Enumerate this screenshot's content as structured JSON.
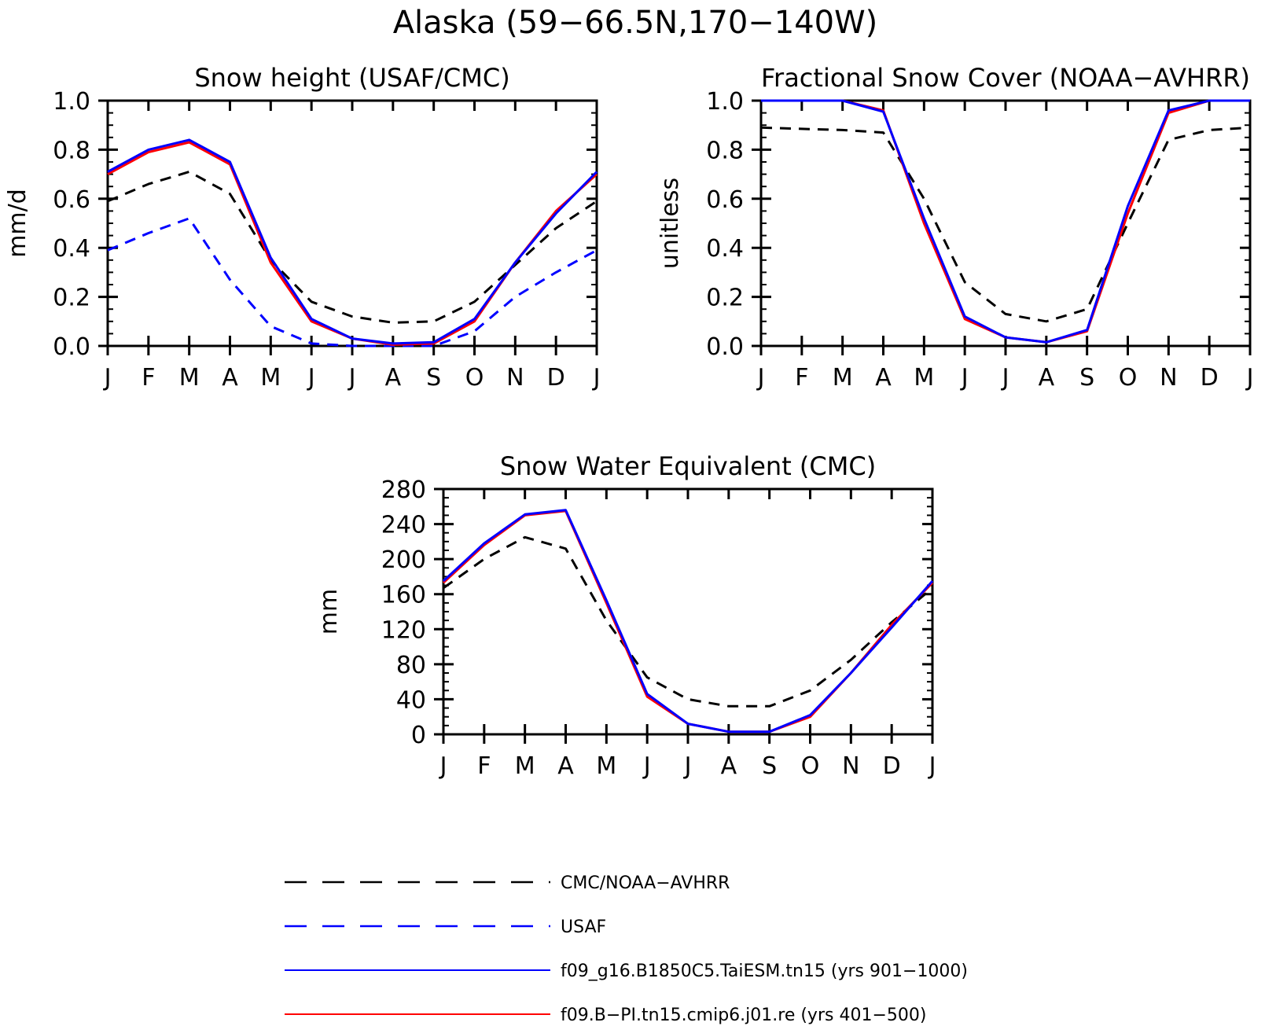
{
  "page_title": "Alaska (59−66.5N,170−140W)",
  "months": [
    "J",
    "F",
    "M",
    "A",
    "M",
    "J",
    "J",
    "A",
    "S",
    "O",
    "N",
    "D",
    "J"
  ],
  "colors": {
    "obs": "#000000",
    "usaf": "#0000ff",
    "taiesm": "#0000ff",
    "cmip6": "#ff0000"
  },
  "legend": [
    {
      "label": "CMC/NOAA−AVHRR",
      "color": "#000000",
      "dashed": true
    },
    {
      "label": "USAF",
      "color": "#0000ff",
      "dashed": true
    },
    {
      "label": "f09_g16.B1850C5.TaiESM.tn15 (yrs 901−1000)",
      "color": "#0000ff",
      "dashed": false
    },
    {
      "label": "f09.B−PI.tn15.cmip6.j01.re (yrs 401−500)",
      "color": "#ff0000",
      "dashed": false
    }
  ],
  "chart_data": [
    {
      "type": "line",
      "title": "Snow height (USAF/CMC)",
      "ylabel": "mm/d",
      "ylim": [
        0,
        1
      ],
      "yticks": [
        "0.0",
        "0.2",
        "0.4",
        "0.6",
        "0.8",
        "1.0"
      ],
      "ytick_values": [
        0,
        0.2,
        0.4,
        0.6,
        0.8,
        1.0
      ],
      "yminor": 0.05,
      "series": [
        {
          "name": "CMC/NOAA−AVHRR",
          "key": "obs",
          "dashed": true,
          "values": [
            0.59,
            0.66,
            0.71,
            0.62,
            0.35,
            0.18,
            0.12,
            0.095,
            0.1,
            0.18,
            0.33,
            0.48,
            0.59
          ]
        },
        {
          "name": "USAF",
          "key": "usaf",
          "dashed": true,
          "values": [
            0.39,
            0.46,
            0.52,
            0.27,
            0.08,
            0.01,
            0.0,
            0.0,
            0.0,
            0.06,
            0.2,
            0.3,
            0.39
          ]
        },
        {
          "name": "f09.B−PI.tn15.cmip6.j01.re (yrs 401−500)",
          "key": "cmip6",
          "dashed": false,
          "values": [
            0.7,
            0.79,
            0.83,
            0.74,
            0.34,
            0.1,
            0.03,
            0.005,
            0.01,
            0.1,
            0.34,
            0.55,
            0.7
          ]
        },
        {
          "name": "f09_g16.B1850C5.TaiESM.tn15 (yrs 901−1000)",
          "key": "taiesm",
          "dashed": false,
          "values": [
            0.71,
            0.8,
            0.84,
            0.75,
            0.36,
            0.11,
            0.03,
            0.01,
            0.015,
            0.11,
            0.34,
            0.54,
            0.71
          ]
        }
      ]
    },
    {
      "type": "line",
      "title": "Fractional Snow Cover (NOAA−AVHRR)",
      "ylabel": "unitless",
      "ylim": [
        0,
        1
      ],
      "yticks": [
        "0.0",
        "0.2",
        "0.4",
        "0.6",
        "0.8",
        "1.0"
      ],
      "ytick_values": [
        0,
        0.2,
        0.4,
        0.6,
        0.8,
        1.0
      ],
      "yminor": 0.05,
      "series": [
        {
          "name": "CMC/NOAA−AVHRR",
          "key": "obs",
          "dashed": true,
          "values": [
            0.89,
            0.885,
            0.88,
            0.87,
            0.6,
            0.26,
            0.13,
            0.1,
            0.15,
            0.5,
            0.84,
            0.88,
            0.89
          ]
        },
        {
          "name": "f09.B−PI.tn15.cmip6.j01.re (yrs 401−500)",
          "key": "cmip6",
          "dashed": false,
          "values": [
            1.0,
            1.0,
            1.0,
            0.96,
            0.5,
            0.11,
            0.035,
            0.015,
            0.06,
            0.54,
            0.95,
            1.0,
            1.0
          ]
        },
        {
          "name": "f09_g16.B1850C5.TaiESM.tn15 (yrs 901−1000)",
          "key": "taiesm",
          "dashed": false,
          "values": [
            1.0,
            1.0,
            1.0,
            0.955,
            0.52,
            0.12,
            0.035,
            0.015,
            0.065,
            0.57,
            0.96,
            1.0,
            1.0
          ]
        }
      ]
    },
    {
      "type": "line",
      "title": "Snow Water Equivalent (CMC)",
      "ylabel": "mm",
      "ylim": [
        0,
        280
      ],
      "yticks": [
        "0",
        "40",
        "80",
        "120",
        "160",
        "200",
        "240",
        "280"
      ],
      "ytick_values": [
        0,
        40,
        80,
        120,
        160,
        200,
        240,
        280
      ],
      "yminor": 10,
      "series": [
        {
          "name": "CMC/NOAA−AVHRR",
          "key": "obs",
          "dashed": true,
          "values": [
            167,
            200,
            225,
            212,
            130,
            65,
            40,
            32,
            32,
            50,
            85,
            128,
            167
          ]
        },
        {
          "name": "f09.B−PI.tn15.cmip6.j01.re (yrs 401−500)",
          "key": "cmip6",
          "dashed": false,
          "values": [
            173,
            216,
            250,
            255,
            150,
            43,
            12,
            3,
            3,
            20,
            70,
            125,
            173
          ]
        },
        {
          "name": "f09_g16.B1850C5.TaiESM.tn15 (yrs 901−1000)",
          "key": "taiesm",
          "dashed": false,
          "values": [
            175,
            218,
            251,
            256,
            153,
            46,
            12,
            3,
            3,
            22,
            70,
            122,
            175
          ]
        }
      ]
    }
  ]
}
